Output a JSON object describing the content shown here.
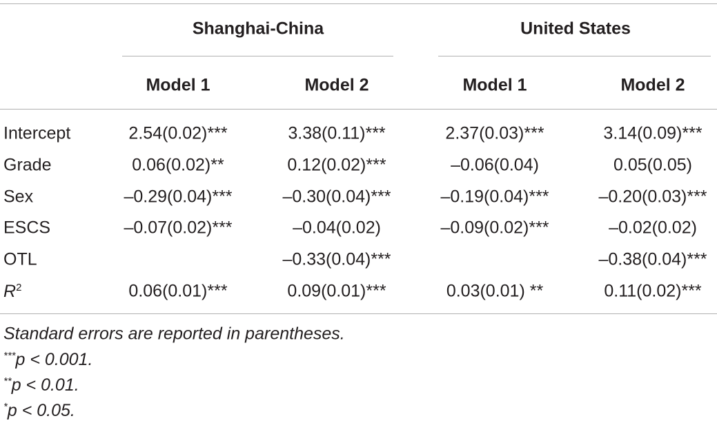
{
  "table": {
    "groups": [
      "Shanghai-China",
      "United States"
    ],
    "models": [
      "Model 1",
      "Model 2",
      "Model 1",
      "Model 2"
    ],
    "rows": [
      {
        "label": "Intercept",
        "cells": [
          "2.54(0.02)***",
          "3.38(0.11)***",
          "2.37(0.03)***",
          "3.14(0.09)***"
        ]
      },
      {
        "label": "Grade",
        "cells": [
          "0.06(0.02)**",
          "0.12(0.02)***",
          "–0.06(0.04)",
          "0.05(0.05)"
        ]
      },
      {
        "label": "Sex",
        "cells": [
          "–0.29(0.04)***",
          "–0.30(0.04)***",
          "–0.19(0.04)***",
          "–0.20(0.03)***"
        ]
      },
      {
        "label": "ESCS",
        "cells": [
          "–0.07(0.02)***",
          "–0.04(0.02)",
          "–0.09(0.02)***",
          "–0.02(0.02)"
        ]
      },
      {
        "label": "OTL",
        "cells": [
          null,
          "–0.33(0.04)***",
          null,
          "–0.38(0.04)***"
        ]
      },
      {
        "label": "R",
        "label_sup": "2",
        "cells": [
          "0.06(0.01)***",
          "0.09(0.01)***",
          "0.03(0.01) **",
          "0.11(0.02)***"
        ]
      }
    ],
    "footnotes": [
      {
        "text": "Standard errors are reported in parentheses."
      },
      {
        "mark": "***",
        "text": "p < 0.001."
      },
      {
        "mark": "**",
        "text": "p < 0.01."
      },
      {
        "mark": "*",
        "text": "p < 0.05."
      }
    ]
  }
}
